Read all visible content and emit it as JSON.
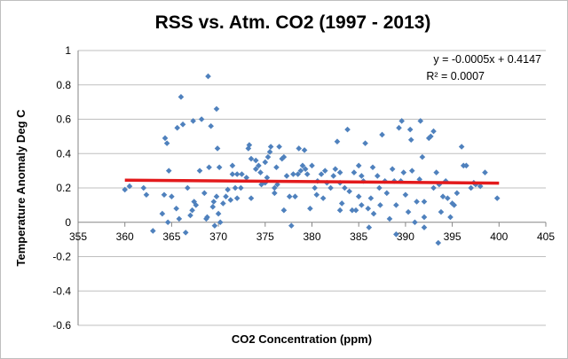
{
  "chart_data": {
    "type": "scatter",
    "title": "RSS vs. Atm. CO2 (1997 - 2013)",
    "xlabel": "CO2 Concentration (ppm)",
    "ylabel": "Temperature Anomaly Deg C",
    "xlim": [
      355,
      405
    ],
    "ylim": [
      -0.6,
      1
    ],
    "xticks": [
      355,
      360,
      365,
      370,
      375,
      380,
      385,
      390,
      395,
      400,
      405
    ],
    "yticks": [
      -0.6,
      -0.4,
      -0.2,
      0,
      0.2,
      0.4,
      0.6,
      0.8,
      1
    ],
    "ytick_labels": [
      "-0.6",
      "-0.4",
      "-0.2",
      "0",
      "0.2",
      "0.4",
      "0.6",
      "0.8",
      "1"
    ],
    "grid": "horizontal",
    "marker_color": "#4f81bd",
    "trendline": {
      "color": "#e31a1c",
      "x": [
        360,
        400
      ],
      "y": [
        0.245,
        0.228
      ],
      "equation": "y = -0.0005x + 0.4147",
      "r_squared": "R² = 0.0007"
    },
    "points": [
      [
        360,
        0.19
      ],
      [
        360.5,
        0.21
      ],
      [
        362,
        0.2
      ],
      [
        362.3,
        0.16
      ],
      [
        363,
        -0.05
      ],
      [
        364,
        0.05
      ],
      [
        364.2,
        0.16
      ],
      [
        364.3,
        0.49
      ],
      [
        364.5,
        0.46
      ],
      [
        364.6,
        0.0
      ],
      [
        364.7,
        0.3
      ],
      [
        365.5,
        0.08
      ],
      [
        365.8,
        0.02
      ],
      [
        365,
        0.15
      ],
      [
        365.6,
        0.55
      ],
      [
        366,
        0.73
      ],
      [
        366.2,
        0.57
      ],
      [
        366.5,
        -0.06
      ],
      [
        366.7,
        0.2
      ],
      [
        367,
        0.04
      ],
      [
        367.2,
        0.07
      ],
      [
        367.3,
        0.59
      ],
      [
        367.4,
        0.12
      ],
      [
        367.6,
        0.1
      ],
      [
        368,
        0.3
      ],
      [
        368.2,
        0.6
      ],
      [
        368.5,
        0.17
      ],
      [
        368.7,
        0.02
      ],
      [
        368.8,
        0.03
      ],
      [
        368.9,
        0.85
      ],
      [
        369,
        0.32
      ],
      [
        369.2,
        0.56
      ],
      [
        369.4,
        0.09
      ],
      [
        369.5,
        0.12
      ],
      [
        369.8,
        0.66
      ],
      [
        369.9,
        0.43
      ],
      [
        370,
        0.05
      ],
      [
        370.1,
        0.32
      ],
      [
        369.6,
        -0.02
      ],
      [
        370.2,
        0.0
      ],
      [
        369.8,
        0.15
      ],
      [
        370.5,
        0.11
      ],
      [
        370.8,
        0.15
      ],
      [
        371,
        0.19
      ],
      [
        371.3,
        0.13
      ],
      [
        371.5,
        0.28
      ],
      [
        371.8,
        0.2
      ],
      [
        372,
        0.28
      ],
      [
        372,
        0.14
      ],
      [
        372.4,
        0.2
      ],
      [
        372.5,
        0.28
      ],
      [
        373,
        0.26
      ],
      [
        373.2,
        0.43
      ],
      [
        373.3,
        0.45
      ],
      [
        373.5,
        0.37
      ],
      [
        373.5,
        0.14
      ],
      [
        374,
        0.31
      ],
      [
        374,
        0.36
      ],
      [
        374.3,
        0.33
      ],
      [
        374.5,
        0.29
      ],
      [
        374.6,
        0.22
      ],
      [
        375,
        0.23
      ],
      [
        375.2,
        0.26
      ],
      [
        375,
        0.35
      ],
      [
        375.3,
        0.38
      ],
      [
        375.5,
        0.41
      ],
      [
        375.6,
        0.44
      ],
      [
        376,
        0.2
      ],
      [
        376.2,
        0.32
      ],
      [
        376.3,
        0.22
      ],
      [
        376.5,
        0.44
      ],
      [
        376.8,
        0.37
      ],
      [
        377,
        0.38
      ],
      [
        377,
        0.07
      ],
      [
        377.3,
        0.27
      ],
      [
        377.6,
        0.15
      ],
      [
        377.8,
        -0.02
      ],
      [
        378,
        0.28
      ],
      [
        378.2,
        0.15
      ],
      [
        378.5,
        0.28
      ],
      [
        378.6,
        0.43
      ],
      [
        378.8,
        0.3
      ],
      [
        379,
        0.33
      ],
      [
        379.2,
        0.42
      ],
      [
        379.3,
        0.31
      ],
      [
        379.5,
        0.28
      ],
      [
        379.8,
        0.08
      ],
      [
        380,
        0.33
      ],
      [
        380.3,
        0.2
      ],
      [
        380.5,
        0.16
      ],
      [
        380.6,
        0.24
      ],
      [
        381,
        0.28
      ],
      [
        381.2,
        0.14
      ],
      [
        381.4,
        0.3
      ],
      [
        381.6,
        0.23
      ],
      [
        382,
        0.2
      ],
      [
        382.3,
        0.27
      ],
      [
        382.5,
        0.31
      ],
      [
        382.7,
        0.47
      ],
      [
        383,
        0.23
      ],
      [
        383,
        0.29
      ],
      [
        383.2,
        0.11
      ],
      [
        383.5,
        0.2
      ],
      [
        383.8,
        0.54
      ],
      [
        384,
        0.18
      ],
      [
        384.3,
        0.07
      ],
      [
        384.5,
        0.29
      ],
      [
        384.7,
        0.07
      ],
      [
        385,
        0.15
      ],
      [
        385,
        0.33
      ],
      [
        385.3,
        0.27
      ],
      [
        385.5,
        0.24
      ],
      [
        385.7,
        0.46
      ],
      [
        386,
        0.08
      ],
      [
        386.1,
        -0.03
      ],
      [
        386.3,
        0.14
      ],
      [
        386.5,
        0.32
      ],
      [
        386.6,
        0.05
      ],
      [
        387,
        0.27
      ],
      [
        387.2,
        0.2
      ],
      [
        387.3,
        0.1
      ],
      [
        387.5,
        0.51
      ],
      [
        387.8,
        0.24
      ],
      [
        388,
        0.17
      ],
      [
        388.3,
        0.02
      ],
      [
        388.6,
        0.31
      ],
      [
        388.8,
        0.24
      ],
      [
        389,
        0.1
      ],
      [
        389,
        -0.07
      ],
      [
        389.3,
        0.55
      ],
      [
        389.6,
        0.59
      ],
      [
        389.8,
        0.29
      ],
      [
        390,
        0.16
      ],
      [
        390.3,
        0.06
      ],
      [
        390.5,
        0.54
      ],
      [
        390.6,
        0.48
      ],
      [
        390.7,
        0.3
      ],
      [
        391,
        0.0
      ],
      [
        391.2,
        0.12
      ],
      [
        391.5,
        0.25
      ],
      [
        391.6,
        0.59
      ],
      [
        391.8,
        0.38
      ],
      [
        392,
        0.12
      ],
      [
        392,
        -0.03
      ],
      [
        392.5,
        0.49
      ],
      [
        392.7,
        0.5
      ],
      [
        393,
        0.53
      ],
      [
        393,
        0.2
      ],
      [
        393.3,
        0.29
      ],
      [
        393.5,
        -0.12
      ],
      [
        393.6,
        0.22
      ],
      [
        393.8,
        0.06
      ],
      [
        394,
        0.15
      ],
      [
        394.3,
        0.24
      ],
      [
        394.5,
        0.14
      ],
      [
        394.8,
        0.03
      ],
      [
        395,
        0.11
      ],
      [
        395.2,
        0.1
      ],
      [
        395.5,
        0.17
      ],
      [
        396,
        0.44
      ],
      [
        396.2,
        0.33
      ],
      [
        396.5,
        0.33
      ],
      [
        397,
        0.2
      ],
      [
        397.3,
        0.23
      ],
      [
        397.5,
        0.22
      ],
      [
        398,
        0.21
      ],
      [
        398.5,
        0.29
      ],
      [
        399.8,
        0.14
      ],
      [
        385.3,
        0.1
      ],
      [
        389.5,
        0.24
      ],
      [
        376,
        0.17
      ],
      [
        371.5,
        0.33
      ],
      [
        383,
        0.07
      ],
      [
        392,
        0.03
      ]
    ]
  }
}
